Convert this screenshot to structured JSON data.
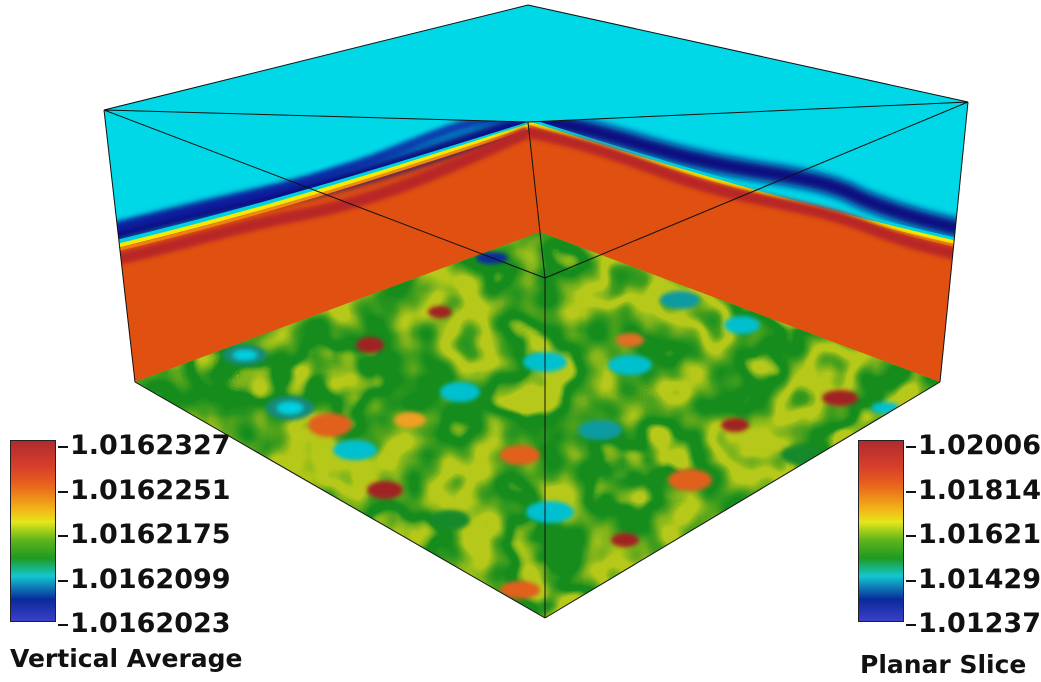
{
  "legends": {
    "left": {
      "title": "Vertical Average",
      "ticks": [
        "1.0162327",
        "1.0162251",
        "1.0162175",
        "1.0162099",
        "1.0162023"
      ]
    },
    "right": {
      "title": "Planar Slice",
      "ticks": [
        "1.02006",
        "1.01814",
        "1.01621",
        "1.01429",
        "1.01237"
      ]
    }
  },
  "colors": {
    "top_face": "#00d8e8",
    "bulk": "#e05010",
    "background": "#ffffff"
  }
}
